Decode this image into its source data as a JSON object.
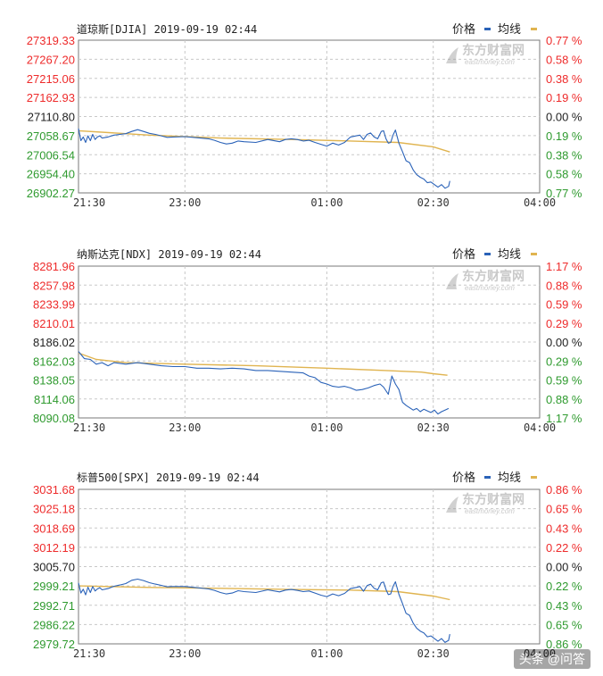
{
  "colors": {
    "price_line": "#2a62b8",
    "avg_line": "#e0b450",
    "up_red": "#ee2b2b",
    "down_green": "#2e9a2e",
    "neutral": "#222222",
    "grid": "#c8c8c8",
    "frame": "#7a7a7a"
  },
  "watermark": {
    "brand": "东方财富网",
    "sub": "eastmoney.com"
  },
  "footer_watermark": "头条 @问答",
  "chart_data": [
    {
      "type": "line",
      "title": "道琼斯[DJIA] 2019-09-19 02:44",
      "legend": {
        "price": "价格",
        "avg": "均线"
      },
      "y_labels": [
        "27319.33",
        "27267.20",
        "27215.06",
        "27162.93",
        "27110.80",
        "27058.67",
        "27006.54",
        "26954.40",
        "26902.27"
      ],
      "pct_labels": [
        "0.77 %",
        "0.58 %",
        "0.38 %",
        "0.19 %",
        "0.00 %",
        "0.19 %",
        "0.38 %",
        "0.58 %",
        "0.77 %"
      ],
      "x_ticks": [
        "21:30",
        "23:00",
        "01:00",
        "02:30",
        "04:00"
      ],
      "x_tick_minutes": [
        0,
        90,
        210,
        300,
        390
      ],
      "ylim": [
        26902.27,
        27319.33
      ],
      "avg_series": {
        "name": "均线",
        "x": [
          0,
          60,
          120,
          180,
          230,
          270,
          300,
          314
        ],
        "y": [
          27072,
          27060,
          27052,
          27048,
          27044,
          27040,
          27028,
          27014
        ]
      },
      "price_series": {
        "name": "价格",
        "x": [
          0,
          2,
          4,
          6,
          8,
          10,
          12,
          14,
          16,
          18,
          20,
          25,
          30,
          35,
          40,
          45,
          50,
          55,
          60,
          65,
          70,
          75,
          80,
          90,
          100,
          110,
          115,
          120,
          125,
          130,
          135,
          140,
          150,
          160,
          170,
          175,
          180,
          185,
          190,
          195,
          200,
          205,
          210,
          215,
          220,
          225,
          230,
          235,
          238,
          241,
          244,
          247,
          250,
          253,
          256,
          258,
          260,
          262,
          264,
          266,
          268,
          271,
          274,
          277,
          280,
          283,
          286,
          289,
          292,
          295,
          298,
          301,
          304,
          307,
          310,
          313,
          314
        ],
        "y": [
          27078,
          27045,
          27055,
          27040,
          27058,
          27045,
          27062,
          27048,
          27055,
          27058,
          27052,
          27055,
          27060,
          27062,
          27064,
          27070,
          27075,
          27070,
          27065,
          27062,
          27058,
          27054,
          27055,
          27056,
          27053,
          27050,
          27046,
          27040,
          27036,
          27038,
          27044,
          27042,
          27040,
          27048,
          27042,
          27048,
          27050,
          27048,
          27044,
          27046,
          27040,
          27035,
          27030,
          27038,
          27033,
          27040,
          27055,
          27058,
          27060,
          27048,
          27062,
          27066,
          27055,
          27050,
          27070,
          27072,
          27050,
          27038,
          27040,
          27060,
          27074,
          27038,
          27015,
          26990,
          26985,
          26965,
          26952,
          26945,
          26940,
          26930,
          26932,
          26925,
          26918,
          26925,
          26915,
          26920,
          26935
        ]
      }
    },
    {
      "type": "line",
      "title": "纳斯达克[NDX] 2019-09-19 02:44",
      "legend": {
        "price": "价格",
        "avg": "均线"
      },
      "y_labels": [
        "8281.96",
        "8257.98",
        "8233.99",
        "8210.01",
        "8186.02",
        "8162.03",
        "8138.05",
        "8114.06",
        "8090.08"
      ],
      "pct_labels": [
        "1.17 %",
        "0.88 %",
        "0.59 %",
        "0.29 %",
        "0.00 %",
        "0.29 %",
        "0.59 %",
        "0.88 %",
        "1.17 %"
      ],
      "x_ticks": [
        "21:30",
        "23:00",
        "01:00",
        "02:30",
        "04:00"
      ],
      "x_tick_minutes": [
        0,
        90,
        210,
        300,
        390
      ],
      "ylim": [
        8090.08,
        8281.96
      ],
      "avg_series": {
        "name": "均线",
        "x": [
          0,
          15,
          40,
          90,
          150,
          210,
          260,
          290,
          300,
          312
        ],
        "y": [
          8172,
          8164,
          8160,
          8158,
          8156,
          8153,
          8150,
          8148,
          8146,
          8144
        ]
      },
      "price_series": {
        "name": "价格",
        "x": [
          0,
          5,
          10,
          15,
          20,
          25,
          30,
          40,
          50,
          60,
          70,
          80,
          90,
          100,
          110,
          120,
          130,
          140,
          150,
          160,
          170,
          180,
          190,
          195,
          200,
          205,
          210,
          215,
          220,
          225,
          230,
          235,
          240,
          245,
          250,
          255,
          258,
          262,
          265,
          268,
          271,
          274,
          277,
          280,
          283,
          286,
          289,
          292,
          295,
          298,
          301,
          304,
          307,
          310,
          313
        ],
        "y": [
          8174,
          8165,
          8164,
          8158,
          8160,
          8156,
          8160,
          8158,
          8160,
          8158,
          8156,
          8155,
          8155,
          8153,
          8153,
          8152,
          8153,
          8152,
          8150,
          8150,
          8149,
          8148,
          8147,
          8143,
          8141,
          8135,
          8133,
          8130,
          8129,
          8130,
          8128,
          8125,
          8126,
          8128,
          8131,
          8133,
          8129,
          8120,
          8143,
          8133,
          8126,
          8110,
          8106,
          8103,
          8100,
          8102,
          8098,
          8101,
          8099,
          8097,
          8100,
          8095,
          8098,
          8100,
          8102
        ]
      }
    },
    {
      "type": "line",
      "title": "标普500[SPX] 2019-09-19 02:44",
      "legend": {
        "price": "价格",
        "avg": "均线"
      },
      "y_labels": [
        "3031.68",
        "3025.18",
        "3018.69",
        "3012.19",
        "3005.70",
        "2999.21",
        "2992.71",
        "2986.22",
        "2979.72"
      ],
      "pct_labels": [
        "0.86 %",
        "0.65 %",
        "0.43 %",
        "0.22 %",
        "0.00 %",
        "0.22 %",
        "0.43 %",
        "0.65 %",
        "0.86 %"
      ],
      "x_ticks": [
        "21:30",
        "23:00",
        "01:00",
        "02:30",
        "04:00"
      ],
      "x_tick_minutes": [
        0,
        90,
        210,
        300,
        390
      ],
      "ylim": [
        2979.72,
        3031.68
      ],
      "avg_series": {
        "name": "均线",
        "x": [
          0,
          60,
          120,
          180,
          230,
          270,
          300,
          314
        ],
        "y": [
          2999.2,
          2998.7,
          2998.4,
          2998.0,
          2997.8,
          2997.3,
          2995.8,
          2994.6
        ]
      },
      "price_series": {
        "name": "价格",
        "x": [
          0,
          2,
          4,
          6,
          8,
          10,
          12,
          14,
          16,
          18,
          20,
          25,
          30,
          35,
          40,
          45,
          50,
          55,
          60,
          65,
          70,
          75,
          80,
          90,
          100,
          110,
          115,
          120,
          125,
          130,
          135,
          140,
          150,
          160,
          170,
          175,
          180,
          185,
          190,
          195,
          200,
          205,
          210,
          215,
          220,
          225,
          230,
          235,
          238,
          241,
          244,
          247,
          250,
          253,
          256,
          258,
          260,
          262,
          264,
          266,
          268,
          271,
          274,
          277,
          280,
          283,
          286,
          289,
          292,
          295,
          298,
          301,
          304,
          307,
          310,
          313,
          314
        ],
        "y": [
          3000.2,
          2996.8,
          2998.1,
          2996.2,
          2998.8,
          2997.0,
          2999.0,
          2997.5,
          2998.2,
          2998.6,
          2997.9,
          2998.3,
          2999.1,
          2999.5,
          3000.0,
          3001.1,
          3001.5,
          3001.0,
          3000.3,
          2999.8,
          2999.4,
          2998.9,
          2999.0,
          2999.0,
          2998.6,
          2998.2,
          2997.7,
          2997.0,
          2996.5,
          2996.8,
          2997.6,
          2997.3,
          2997.0,
          2997.9,
          2997.2,
          2997.8,
          2998.0,
          2997.7,
          2997.3,
          2997.5,
          2996.8,
          2996.1,
          2995.6,
          2996.5,
          2995.9,
          2996.7,
          2998.3,
          2998.7,
          2999.0,
          2997.4,
          2999.3,
          2999.8,
          2998.4,
          2997.9,
          3000.3,
          3000.5,
          2998.0,
          2996.3,
          2996.5,
          2999.0,
          3000.6,
          2996.4,
          2993.3,
          2990.0,
          2989.3,
          2986.7,
          2985.0,
          2984.0,
          2983.4,
          2982.1,
          2982.4,
          2981.5,
          2980.6,
          2981.5,
          2980.2,
          2980.9,
          2983.0
        ]
      }
    }
  ]
}
